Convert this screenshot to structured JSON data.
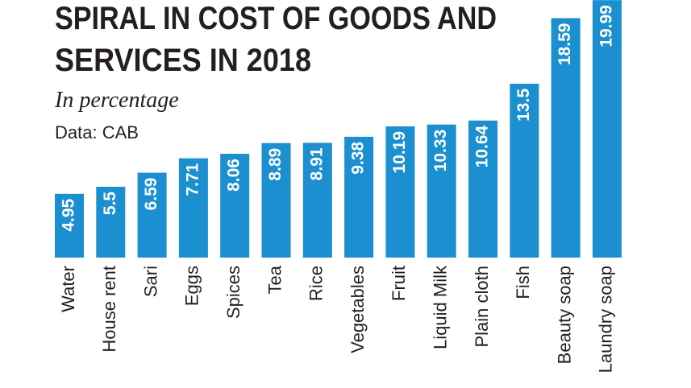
{
  "chart_data": {
    "type": "bar",
    "title": [
      "SPIRAL IN COST OF GOODS AND",
      "SERVICES IN 2018"
    ],
    "subtitle": "In percentage",
    "source": "Data: CAB",
    "categories": [
      "Water",
      "House rent",
      "Sari",
      "Eggs",
      "Spices",
      "Tea",
      "Rice",
      "Vegetables",
      "Fruit",
      "Liquid Milk",
      "Plain cloth",
      "Fish",
      "Beauty soap",
      "Laundry soap"
    ],
    "values": [
      4.95,
      5.5,
      6.59,
      7.71,
      8.06,
      8.89,
      8.91,
      9.38,
      10.19,
      10.33,
      10.64,
      13.5,
      18.59,
      19.99
    ],
    "color": "#1b8fd0",
    "ylim": [
      0,
      20
    ]
  }
}
